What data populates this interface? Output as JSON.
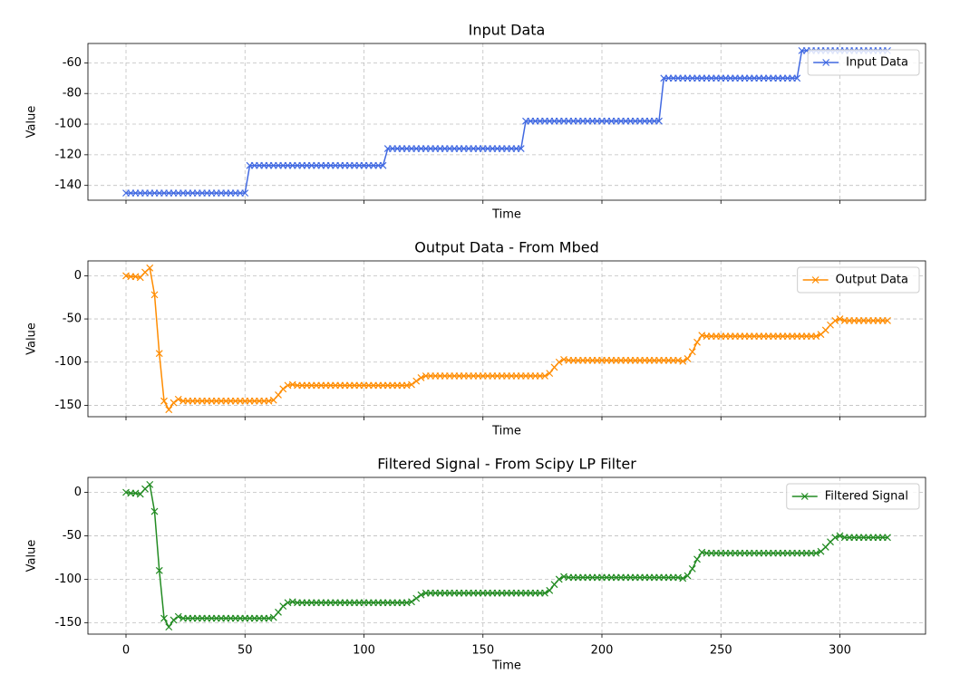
{
  "chart_data": [
    {
      "type": "line",
      "title": "Input Data",
      "x_label": "Time",
      "y_label": "Value",
      "marker": "x",
      "grid": true,
      "legend": "upper right",
      "xtick_labels": false,
      "x": [
        0,
        2,
        4,
        6,
        8,
        10,
        12,
        14,
        16,
        18,
        20,
        22,
        24,
        26,
        28,
        30,
        32,
        34,
        36,
        38,
        40,
        42,
        44,
        46,
        48,
        50,
        52,
        54,
        56,
        58,
        60,
        62,
        64,
        66,
        68,
        70,
        72,
        74,
        76,
        78,
        80,
        82,
        84,
        86,
        88,
        90,
        92,
        94,
        96,
        98,
        100,
        102,
        104,
        106,
        108,
        110,
        112,
        114,
        116,
        118,
        120,
        122,
        124,
        126,
        128,
        130,
        132,
        134,
        136,
        138,
        140,
        142,
        144,
        146,
        148,
        150,
        152,
        154,
        156,
        158,
        160,
        162,
        164,
        166,
        168,
        170,
        172,
        174,
        176,
        178,
        180,
        182,
        184,
        186,
        188,
        190,
        192,
        194,
        196,
        198,
        200,
        202,
        204,
        206,
        208,
        210,
        212,
        214,
        216,
        218,
        220,
        222,
        224,
        226,
        228,
        230,
        232,
        234,
        236,
        238,
        240,
        242,
        244,
        246,
        248,
        250,
        252,
        254,
        256,
        258,
        260,
        262,
        264,
        266,
        268,
        270,
        272,
        274,
        276,
        278,
        280,
        282,
        284,
        286,
        288,
        290,
        292,
        294,
        296,
        298,
        300,
        302,
        304,
        306,
        308,
        310,
        312,
        314,
        316,
        318,
        320
      ],
      "series": [
        {
          "name": "Input Data",
          "color": "#4169e1",
          "values": [
            -145,
            -145,
            -145,
            -145,
            -145,
            -145,
            -145,
            -145,
            -145,
            -145,
            -145,
            -145,
            -145,
            -145,
            -145,
            -145,
            -145,
            -145,
            -145,
            -145,
            -145,
            -145,
            -145,
            -145,
            -145,
            -145,
            -127,
            -127,
            -127,
            -127,
            -127,
            -127,
            -127,
            -127,
            -127,
            -127,
            -127,
            -127,
            -127,
            -127,
            -127,
            -127,
            -127,
            -127,
            -127,
            -127,
            -127,
            -127,
            -127,
            -127,
            -127,
            -127,
            -127,
            -127,
            -127,
            -116,
            -116,
            -116,
            -116,
            -116,
            -116,
            -116,
            -116,
            -116,
            -116,
            -116,
            -116,
            -116,
            -116,
            -116,
            -116,
            -116,
            -116,
            -116,
            -116,
            -116,
            -116,
            -116,
            -116,
            -116,
            -116,
            -116,
            -116,
            -116,
            -98,
            -98,
            -98,
            -98,
            -98,
            -98,
            -98,
            -98,
            -98,
            -98,
            -98,
            -98,
            -98,
            -98,
            -98,
            -98,
            -98,
            -98,
            -98,
            -98,
            -98,
            -98,
            -98,
            -98,
            -98,
            -98,
            -98,
            -98,
            -98,
            -70,
            -70,
            -70,
            -70,
            -70,
            -70,
            -70,
            -70,
            -70,
            -70,
            -70,
            -70,
            -70,
            -70,
            -70,
            -70,
            -70,
            -70,
            -70,
            -70,
            -70,
            -70,
            -70,
            -70,
            -70,
            -70,
            -70,
            -70,
            -70,
            -52,
            -52,
            -52,
            -52,
            -52,
            -52,
            -52,
            -52,
            -52,
            -52,
            -52,
            -52,
            -52,
            -52,
            -52,
            -52,
            -52,
            -52,
            -52
          ]
        }
      ],
      "xlim": [
        -16,
        336
      ],
      "ylim": [
        -149.65,
        -47.35
      ],
      "xticks": [
        0,
        50,
        100,
        150,
        200,
        250,
        300
      ],
      "yticks": [
        -140,
        -120,
        -100,
        -80,
        -60
      ]
    },
    {
      "type": "line",
      "title": "Output Data - From Mbed",
      "x_label": "Time",
      "y_label": "Value",
      "marker": "x",
      "grid": true,
      "legend": "upper right",
      "xtick_labels": false,
      "x": [
        0,
        2,
        4,
        6,
        8,
        10,
        12,
        14,
        16,
        18,
        20,
        22,
        24,
        26,
        28,
        30,
        32,
        34,
        36,
        38,
        40,
        42,
        44,
        46,
        48,
        50,
        52,
        54,
        56,
        58,
        60,
        62,
        64,
        66,
        68,
        70,
        72,
        74,
        76,
        78,
        80,
        82,
        84,
        86,
        88,
        90,
        92,
        94,
        96,
        98,
        100,
        102,
        104,
        106,
        108,
        110,
        112,
        114,
        116,
        118,
        120,
        122,
        124,
        126,
        128,
        130,
        132,
        134,
        136,
        138,
        140,
        142,
        144,
        146,
        148,
        150,
        152,
        154,
        156,
        158,
        160,
        162,
        164,
        166,
        168,
        170,
        172,
        174,
        176,
        178,
        180,
        182,
        184,
        186,
        188,
        190,
        192,
        194,
        196,
        198,
        200,
        202,
        204,
        206,
        208,
        210,
        212,
        214,
        216,
        218,
        220,
        222,
        224,
        226,
        228,
        230,
        232,
        234,
        236,
        238,
        240,
        242,
        244,
        246,
        248,
        250,
        252,
        254,
        256,
        258,
        260,
        262,
        264,
        266,
        268,
        270,
        272,
        274,
        276,
        278,
        280,
        282,
        284,
        286,
        288,
        290,
        292,
        294,
        296,
        298,
        300,
        302,
        304,
        306,
        308,
        310,
        312,
        314,
        316,
        318,
        320
      ],
      "series": [
        {
          "name": "Output Data",
          "color": "#ff8c00",
          "values": [
            0,
            -1,
            -1,
            -2,
            4,
            9,
            -22,
            -90,
            -145,
            -155,
            -147,
            -143,
            -145,
            -145,
            -145,
            -145,
            -145,
            -145,
            -145,
            -145,
            -145,
            -145,
            -145,
            -145,
            -145,
            -145,
            -145,
            -145,
            -145,
            -145,
            -145,
            -144,
            -138,
            -131,
            -127,
            -126,
            -127,
            -127,
            -127,
            -127,
            -127,
            -127,
            -127,
            -127,
            -127,
            -127,
            -127,
            -127,
            -127,
            -127,
            -127,
            -127,
            -127,
            -127,
            -127,
            -127,
            -127,
            -127,
            -127,
            -127,
            -126,
            -122,
            -118,
            -116,
            -116,
            -116,
            -116,
            -116,
            -116,
            -116,
            -116,
            -116,
            -116,
            -116,
            -116,
            -116,
            -116,
            -116,
            -116,
            -116,
            -116,
            -116,
            -116,
            -116,
            -116,
            -116,
            -116,
            -116,
            -116,
            -113,
            -106,
            -100,
            -97,
            -98,
            -98,
            -98,
            -98,
            -98,
            -98,
            -98,
            -98,
            -98,
            -98,
            -98,
            -98,
            -98,
            -98,
            -98,
            -98,
            -98,
            -98,
            -98,
            -98,
            -98,
            -98,
            -98,
            -98,
            -99,
            -96,
            -88,
            -77,
            -69,
            -70,
            -70,
            -70,
            -70,
            -70,
            -70,
            -70,
            -70,
            -70,
            -70,
            -70,
            -70,
            -70,
            -70,
            -70,
            -70,
            -70,
            -70,
            -70,
            -70,
            -70,
            -70,
            -70,
            -70,
            -68,
            -63,
            -57,
            -52,
            -50,
            -52,
            -52,
            -52,
            -52,
            -52,
            -52,
            -52,
            -52,
            -52,
            -52
          ]
        }
      ],
      "xlim": [
        -16,
        336
      ],
      "ylim": [
        -163.2,
        17.2
      ],
      "xticks": [
        0,
        50,
        100,
        150,
        200,
        250,
        300
      ],
      "yticks": [
        -150,
        -100,
        -50,
        0
      ]
    },
    {
      "type": "line",
      "title": "Filtered Signal - From Scipy LP Filter",
      "x_label": "Time",
      "y_label": "Value",
      "marker": "x",
      "grid": true,
      "legend": "upper right",
      "xtick_labels": true,
      "x": [
        0,
        2,
        4,
        6,
        8,
        10,
        12,
        14,
        16,
        18,
        20,
        22,
        24,
        26,
        28,
        30,
        32,
        34,
        36,
        38,
        40,
        42,
        44,
        46,
        48,
        50,
        52,
        54,
        56,
        58,
        60,
        62,
        64,
        66,
        68,
        70,
        72,
        74,
        76,
        78,
        80,
        82,
        84,
        86,
        88,
        90,
        92,
        94,
        96,
        98,
        100,
        102,
        104,
        106,
        108,
        110,
        112,
        114,
        116,
        118,
        120,
        122,
        124,
        126,
        128,
        130,
        132,
        134,
        136,
        138,
        140,
        142,
        144,
        146,
        148,
        150,
        152,
        154,
        156,
        158,
        160,
        162,
        164,
        166,
        168,
        170,
        172,
        174,
        176,
        178,
        180,
        182,
        184,
        186,
        188,
        190,
        192,
        194,
        196,
        198,
        200,
        202,
        204,
        206,
        208,
        210,
        212,
        214,
        216,
        218,
        220,
        222,
        224,
        226,
        228,
        230,
        232,
        234,
        236,
        238,
        240,
        242,
        244,
        246,
        248,
        250,
        252,
        254,
        256,
        258,
        260,
        262,
        264,
        266,
        268,
        270,
        272,
        274,
        276,
        278,
        280,
        282,
        284,
        286,
        288,
        290,
        292,
        294,
        296,
        298,
        300,
        302,
        304,
        306,
        308,
        310,
        312,
        314,
        316,
        318,
        320
      ],
      "series": [
        {
          "name": "Filtered Signal",
          "color": "#228b22",
          "values": [
            0,
            -1,
            -1,
            -2,
            4,
            9,
            -22,
            -90,
            -145,
            -155,
            -147,
            -143,
            -145,
            -145,
            -145,
            -145,
            -145,
            -145,
            -145,
            -145,
            -145,
            -145,
            -145,
            -145,
            -145,
            -145,
            -145,
            -145,
            -145,
            -145,
            -145,
            -144,
            -138,
            -131,
            -127,
            -126,
            -127,
            -127,
            -127,
            -127,
            -127,
            -127,
            -127,
            -127,
            -127,
            -127,
            -127,
            -127,
            -127,
            -127,
            -127,
            -127,
            -127,
            -127,
            -127,
            -127,
            -127,
            -127,
            -127,
            -127,
            -126,
            -122,
            -118,
            -116,
            -116,
            -116,
            -116,
            -116,
            -116,
            -116,
            -116,
            -116,
            -116,
            -116,
            -116,
            -116,
            -116,
            -116,
            -116,
            -116,
            -116,
            -116,
            -116,
            -116,
            -116,
            -116,
            -116,
            -116,
            -116,
            -113,
            -106,
            -100,
            -97,
            -98,
            -98,
            -98,
            -98,
            -98,
            -98,
            -98,
            -98,
            -98,
            -98,
            -98,
            -98,
            -98,
            -98,
            -98,
            -98,
            -98,
            -98,
            -98,
            -98,
            -98,
            -98,
            -98,
            -98,
            -99,
            -96,
            -88,
            -77,
            -69,
            -70,
            -70,
            -70,
            -70,
            -70,
            -70,
            -70,
            -70,
            -70,
            -70,
            -70,
            -70,
            -70,
            -70,
            -70,
            -70,
            -70,
            -70,
            -70,
            -70,
            -70,
            -70,
            -70,
            -70,
            -68,
            -63,
            -57,
            -52,
            -50,
            -52,
            -52,
            -52,
            -52,
            -52,
            -52,
            -52,
            -52,
            -52,
            -52
          ]
        }
      ],
      "xlim": [
        -16,
        336
      ],
      "ylim": [
        -163.2,
        17.2
      ],
      "xticks": [
        0,
        50,
        100,
        150,
        200,
        250,
        300
      ],
      "yticks": [
        -150,
        -100,
        -50,
        0
      ]
    }
  ]
}
